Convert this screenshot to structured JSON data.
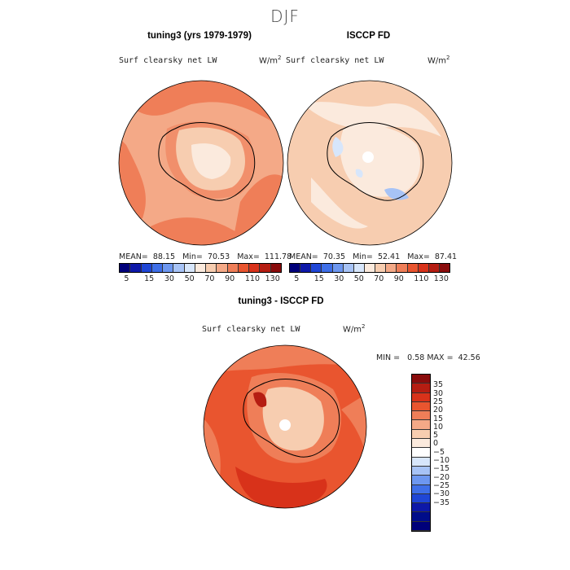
{
  "season": "DJF",
  "panels": {
    "model": {
      "title": "tuning3 (yrs 1979-1979)",
      "variable": "Surf clearsky net LW",
      "units": "W/m",
      "units_sup": "2",
      "mean_label": "MEAN=",
      "mean": "88.15",
      "min_label": "Min=",
      "min": "70.53",
      "max_label": "Max=",
      "max": "111.78"
    },
    "obs": {
      "title": "ISCCP FD",
      "variable": "Surf clearsky net LW",
      "units": "W/m",
      "units_sup": "2",
      "mean_label": "MEAN=",
      "mean": "70.35",
      "min_label": "Min=",
      "min": "52.41",
      "max_label": "Max=",
      "max": "87.41"
    },
    "diff": {
      "title": "tuning3 - ISCCP FD",
      "variable": "Surf clearsky net LW",
      "units": "W/m",
      "units_sup": "2",
      "min_label": "MIN =",
      "min": "0.58",
      "max_label": "MAX =",
      "max": "42.56"
    }
  },
  "colorbar_abs": {
    "colors": [
      "#00007a",
      "#0d18a8",
      "#1f46d6",
      "#3f6fe8",
      "#6d97f0",
      "#a7c3f6",
      "#d7e6fb",
      "#fbeadd",
      "#f7cdb0",
      "#f4a987",
      "#ef7e58",
      "#e9552f",
      "#d8321a",
      "#b51d12",
      "#8a0c0c"
    ],
    "tick_labels": [
      "5",
      "15",
      "30",
      "50",
      "70",
      "90",
      "110",
      "130"
    ]
  },
  "colorbar_diff": {
    "colors": [
      "#8a0c0c",
      "#b51d12",
      "#d8321a",
      "#e9552f",
      "#ef7e58",
      "#f4a987",
      "#f7cdb0",
      "#fbeadd",
      "#ffffff",
      "#d7e6fb",
      "#a7c3f6",
      "#6d97f0",
      "#3f6fe8",
      "#1f46d6",
      "#0d18a8",
      "#000c8a",
      "#00007a"
    ],
    "tick_labels": [
      "35",
      "30",
      "25",
      "20",
      "15",
      "10",
      "5",
      "0",
      "−5",
      "−10",
      "−15",
      "−20",
      "−25",
      "−30",
      "−35"
    ]
  }
}
